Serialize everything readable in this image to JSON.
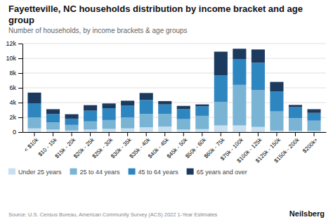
{
  "chart_data": {
    "type": "bar",
    "stacked": true,
    "title": "Fayetteville, NC households distribution by income bracket and age\ngroup",
    "subtitle": "Number of households, by income brackets & age groups",
    "source": "Source: U.S. Census Bureau, American Community Survey (ACS) 2022 1-Year Estimates",
    "annotations": [
      "Neilsberg"
    ],
    "categories": [
      "< $10k",
      "$10 - 15k",
      "$15k - 20k",
      "$20k - 25k",
      "$25k - 30k",
      "$30k - 35k",
      "$35k - 40k",
      "$40k - 45k",
      "$45k - 50k",
      "$50k - 60k",
      "$60k - 75k",
      "$75k - 100k",
      "$100k - 125k",
      "$125k - 150k",
      "$150k - 200k",
      "$200k+"
    ],
    "series": [
      {
        "name": "Under 25 years",
        "color": "#c8dff0",
        "values": [
          500,
          350,
          220,
          350,
          430,
          500,
          650,
          750,
          350,
          400,
          900,
          900,
          700,
          200,
          180,
          150
        ]
      },
      {
        "name": "25 to 44 years",
        "color": "#7ab4d4",
        "values": [
          1500,
          950,
          750,
          1100,
          1200,
          1500,
          1800,
          1700,
          1400,
          1800,
          3200,
          5500,
          5000,
          2600,
          1700,
          1400
        ]
      },
      {
        "name": "45 to 64 years",
        "color": "#2e86c1",
        "values": [
          1900,
          1150,
          850,
          1450,
          1600,
          1600,
          1900,
          1300,
          1350,
          1300,
          3600,
          3500,
          3700,
          2700,
          1500,
          1050
        ]
      },
      {
        "name": "65 years and over",
        "color": "#1b3a5e",
        "values": [
          1450,
          650,
          600,
          750,
          650,
          650,
          950,
          450,
          450,
          250,
          3200,
          1400,
          1800,
          1300,
          300,
          500
        ]
      }
    ],
    "ylim": [
      0,
      12000
    ],
    "yticks": [
      0,
      {
        "value": 2000,
        "label": "2k"
      },
      {
        "value": 4000,
        "label": "4k"
      },
      {
        "value": 6000,
        "label": "6k"
      },
      {
        "value": 8000,
        "label": "8k"
      },
      {
        "value": 10000,
        "label": "10k"
      },
      {
        "value": 12000,
        "label": "12k"
      }
    ],
    "grid": true,
    "legend": "bottom"
  }
}
